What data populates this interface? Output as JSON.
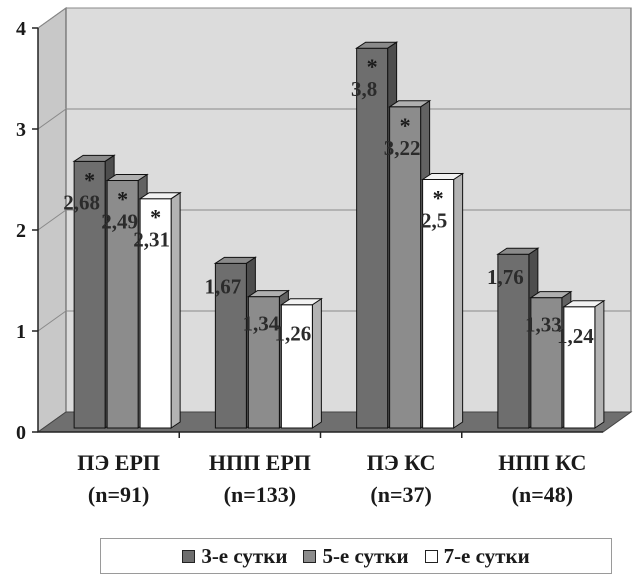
{
  "chart_data": {
    "type": "bar",
    "categories": [
      [
        "ПЭ ЕРП",
        "(n=91)"
      ],
      [
        "НПП ЕРП",
        "(n=133)"
      ],
      [
        "ПЭ КС",
        "(n=37)"
      ],
      [
        "НПП КС",
        "(n=48)"
      ]
    ],
    "series": [
      {
        "name": "3-е сутки",
        "values": [
          2.68,
          1.67,
          3.8,
          1.76
        ],
        "labels": [
          "2,68",
          "1,67",
          "3,8",
          "1,76"
        ],
        "color": "#6e6e6e",
        "stars": [
          true,
          false,
          true,
          false
        ]
      },
      {
        "name": "5-е сутки",
        "values": [
          2.49,
          1.34,
          3.22,
          1.33
        ],
        "labels": [
          "2,49",
          "1,34",
          "3,22",
          "1,33"
        ],
        "color": "#8c8c8c",
        "stars": [
          true,
          false,
          true,
          false
        ]
      },
      {
        "name": "7-е сутки",
        "values": [
          2.31,
          1.26,
          2.5,
          1.24
        ],
        "labels": [
          "2,31",
          "1,26",
          "2,5",
          "1,24"
        ],
        "color": "#ffffff",
        "stars": [
          true,
          false,
          true,
          false
        ]
      }
    ],
    "star_symbol": "*",
    "ylim": [
      0,
      4
    ],
    "yticks": [
      "0",
      "1",
      "2",
      "3",
      "4"
    ],
    "grid": true,
    "three_d": true,
    "legend_position": "bottom",
    "colors": {
      "wall": "#dcdcdc",
      "floor": "#6f6f6f",
      "gridline": "#8a8a8a"
    }
  },
  "legend": {
    "items": [
      {
        "label": "3-е сутки",
        "color": "#6e6e6e"
      },
      {
        "label": "5-е сутки",
        "color": "#8c8c8c"
      },
      {
        "label": "7-е сутки",
        "color": "#ffffff"
      }
    ]
  }
}
